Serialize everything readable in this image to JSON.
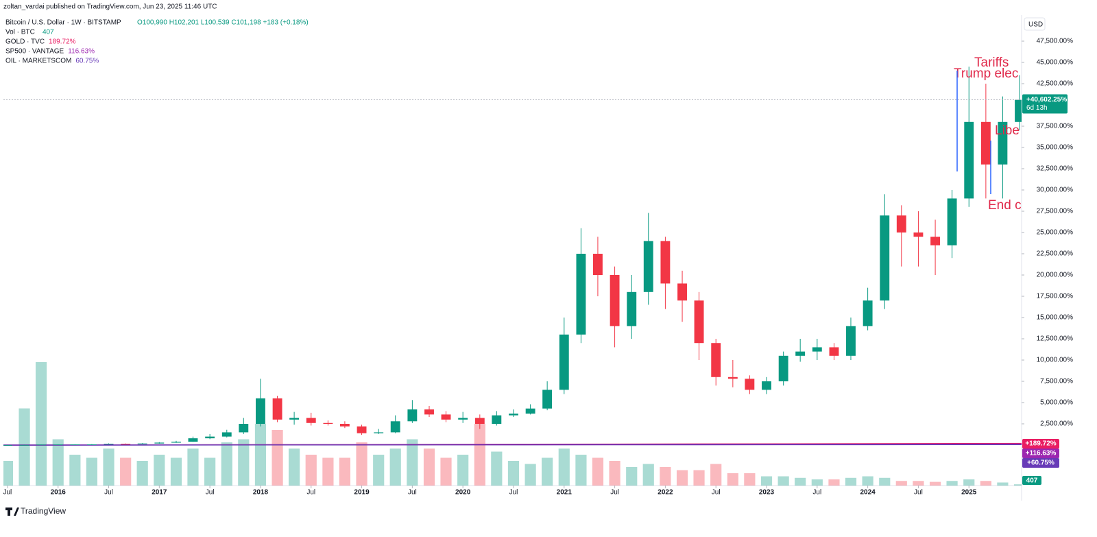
{
  "header": "zoltan_vardai published on TradingView.com, Jun 23, 2025 11:46 UTC",
  "brand": "TradingView",
  "chart_data": {
    "type": "candlestick",
    "title": "Bitcoin / U.S. Dollar · 1W · BITSTAMP",
    "ohlc": "O100,990 H102,201 L100,539 C101,198 +183 (+0.18%)",
    "currency": "USD",
    "colors": {
      "up": "#089981",
      "down": "#f23645"
    },
    "x": [
      2015.5,
      2015.667,
      2015.833,
      2016,
      2016.167,
      2016.333,
      2016.5,
      2016.667,
      2016.833,
      2017,
      2017.167,
      2017.333,
      2017.5,
      2017.667,
      2017.833,
      2018,
      2018.167,
      2018.333,
      2018.5,
      2018.667,
      2018.833,
      2019,
      2019.167,
      2019.333,
      2019.5,
      2019.667,
      2019.833,
      2020,
      2020.167,
      2020.333,
      2020.5,
      2020.667,
      2020.833,
      2021,
      2021.167,
      2021.333,
      2021.5,
      2021.667,
      2021.833,
      2022,
      2022.167,
      2022.333,
      2022.5,
      2022.667,
      2022.833,
      2023,
      2023.167,
      2023.333,
      2023.5,
      2023.667,
      2023.833,
      2024,
      2024.167,
      2024.333,
      2024.5,
      2024.667,
      2024.833,
      2025,
      2025.167,
      2025.333,
      2025.5
    ],
    "open": [
      0,
      10,
      20,
      60,
      70,
      75,
      85,
      160,
      140,
      190,
      290,
      400,
      800,
      1000,
      1500,
      2500,
      5500,
      3000,
      3200,
      2600,
      2500,
      2200,
      1400,
      1500,
      2800,
      4200,
      3600,
      3000,
      3200,
      2500,
      3500,
      3700,
      4300,
      6500,
      13000,
      22500,
      20000,
      14000,
      18000,
      24000,
      19000,
      17000,
      12000,
      8000,
      7800,
      6500,
      7500,
      10500,
      11000,
      11500,
      10500,
      14000,
      17000,
      27000,
      25000,
      24500,
      23500,
      29000,
      38000,
      33000,
      38000
    ],
    "high": [
      30,
      40,
      80,
      90,
      100,
      110,
      200,
      190,
      230,
      350,
      500,
      1000,
      1300,
      1800,
      3200,
      7800,
      5800,
      3900,
      3800,
      2900,
      2800,
      2400,
      1900,
      3500,
      5300,
      4600,
      4000,
      3900,
      3600,
      4000,
      4200,
      4800,
      7500,
      15000,
      25500,
      24500,
      21000,
      20000,
      27300,
      24500,
      20500,
      18000,
      12500,
      10000,
      8200,
      8000,
      11000,
      12500,
      12500,
      12000,
      15000,
      18500,
      29500,
      28200,
      27500,
      26500,
      30000,
      44500,
      42500,
      41000,
      43500
    ],
    "low": [
      -10,
      0,
      10,
      50,
      60,
      65,
      75,
      130,
      120,
      170,
      260,
      380,
      700,
      900,
      1300,
      2200,
      2700,
      2400,
      2300,
      2300,
      2000,
      1200,
      1300,
      1400,
      2600,
      3300,
      2700,
      2600,
      1900,
      2300,
      3300,
      3600,
      4100,
      6000,
      12000,
      17500,
      11500,
      12500,
      16500,
      16000,
      14500,
      10000,
      7000,
      6800,
      6000,
      6000,
      7000,
      9800,
      10000,
      10000,
      10000,
      13500,
      16000,
      21000,
      21000,
      20000,
      22000,
      28000,
      29000,
      29000,
      37000
    ],
    "close": [
      10,
      20,
      60,
      70,
      75,
      85,
      160,
      140,
      190,
      290,
      400,
      800,
      1000,
      1500,
      2500,
      5500,
      3000,
      3200,
      2600,
      2500,
      2200,
      1400,
      1500,
      2800,
      4200,
      3600,
      3000,
      3200,
      2500,
      3500,
      3700,
      4300,
      6500,
      13000,
      22500,
      20000,
      14000,
      18000,
      24000,
      19000,
      17000,
      12000,
      8000,
      7800,
      6500,
      7500,
      10500,
      11000,
      11500,
      10500,
      14000,
      17000,
      27000,
      25000,
      24500,
      23500,
      29000,
      38000,
      33000,
      38000,
      40600
    ],
    "volume_name": "Vol · BTC",
    "volume_legend": "407",
    "volume": [
      8000,
      25000,
      40000,
      15000,
      10000,
      9000,
      12000,
      9000,
      8000,
      10000,
      9000,
      12000,
      9000,
      14000,
      15000,
      20000,
      18000,
      12000,
      10000,
      9000,
      9000,
      14000,
      10000,
      12000,
      15000,
      12000,
      9000,
      10000,
      20000,
      11000,
      8000,
      7000,
      9000,
      12000,
      10000,
      9000,
      8000,
      6000,
      7000,
      6000,
      5000,
      5000,
      7000,
      4000,
      4000,
      3000,
      3000,
      2500,
      2000,
      2000,
      2500,
      3000,
      2500,
      1500,
      1500,
      1200,
      1500,
      2000,
      1500,
      1000,
      407
    ],
    "volume_label": {
      "value": 407,
      "label": "407"
    },
    "current": {
      "value": 40602.25,
      "label": "+40,602.25%"
    },
    "countdown": "6d 13h",
    "compare": [
      {
        "name": "GOLD · TVC",
        "color": "#e91e63",
        "values": [
          0,
          189.72
        ],
        "legend_label": "189.72%",
        "last_label": "+189.72%"
      },
      {
        "name": "SP500 · VANTAGE",
        "color": "#9c27b0",
        "values": [
          0,
          116.63
        ],
        "legend_label": "116.63%",
        "last_label": "+116.63%"
      },
      {
        "name": "OIL · MARKETSCOM",
        "color": "#673ab7",
        "values": [
          0,
          60.75
        ],
        "legend_label": "60.75%",
        "last_label": "+60.75%"
      }
    ],
    "annotations": [
      "Tariffs",
      "Trump elec",
      "Libe",
      "End c"
    ],
    "xlim": [
      2015.46,
      2025.52
    ],
    "xticks": [
      {
        "value": 2015.5,
        "label": "Jul"
      },
      2016,
      {
        "value": 2016.5,
        "label": "Jul"
      },
      2017,
      {
        "value": 2017.5,
        "label": "Jul"
      },
      2018,
      {
        "value": 2018.5,
        "label": "Jul"
      },
      2019,
      {
        "value": 2019.5,
        "label": "Jul"
      },
      2020,
      {
        "value": 2020.5,
        "label": "Jul"
      },
      2021,
      {
        "value": 2021.5,
        "label": "Jul"
      },
      2022,
      {
        "value": 2022.5,
        "label": "Jul"
      },
      2023,
      {
        "value": 2023.5,
        "label": "Jul"
      },
      2024,
      {
        "value": 2024.5,
        "label": "Jul"
      },
      2025
    ],
    "ylim": [
      -4758,
      50565
    ],
    "yticks": [
      {
        "value": 2500,
        "label": "2,500.00%"
      },
      {
        "value": 5000,
        "label": "5,000.00%"
      },
      {
        "value": 7500,
        "label": "7,500.00%"
      },
      {
        "value": 10000,
        "label": "10,000.00%"
      },
      {
        "value": 12500,
        "label": "12,500.00%"
      },
      {
        "value": 15000,
        "label": "15,000.00%"
      },
      {
        "value": 17500,
        "label": "17,500.00%"
      },
      {
        "value": 20000,
        "label": "20,000.00%"
      },
      {
        "value": 22500,
        "label": "22,500.00%"
      },
      {
        "value": 25000,
        "label": "25,000.00%"
      },
      {
        "value": 27500,
        "label": "27,500.00%"
      },
      {
        "value": 30000,
        "label": "30,000.00%"
      },
      {
        "value": 32500,
        "label": "32,500.00%"
      },
      {
        "value": 35000,
        "label": "35,000.00%"
      },
      {
        "value": 37500,
        "label": "37,500.00%"
      },
      {
        "value": 42500,
        "label": "42,500.00%"
      },
      {
        "value": 45000,
        "label": "45,000.00%"
      },
      {
        "value": 47500,
        "label": "47,500.00%"
      }
    ],
    "grid": false
  }
}
